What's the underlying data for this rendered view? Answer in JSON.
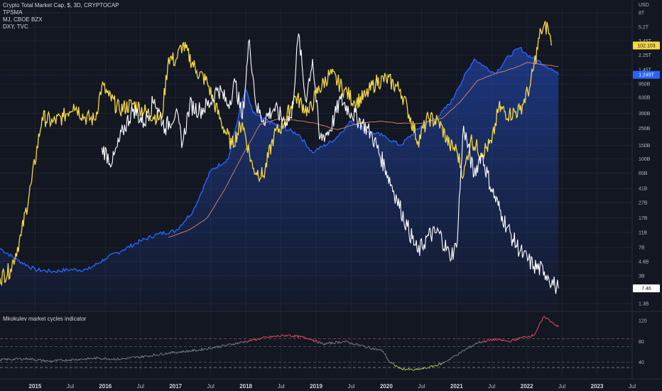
{
  "legend": {
    "main_series": "Crypto Total Market Cap, $, 3D, CRYPTOCAP",
    "indicator_1": "TPSMA",
    "indicator_2": "MJ, CBOE BZX",
    "indicator_3": "DXY, TVC"
  },
  "oscillator_title": "Mkokulev market cycles indicator",
  "colors": {
    "background": "#131722",
    "total_mcap": "#2962ff",
    "tpsma": "#e0826a",
    "mj": "#f5d742",
    "dxy": "#ffffff",
    "osc_grey": "#7a7e89",
    "osc_red": "#e0525c",
    "osc_green": "#9bbf5a"
  },
  "chart_data": [
    {
      "type": "line",
      "panel": "main",
      "scale": "log",
      "y_axis_ticks": [
        "8T",
        "5.2T",
        "3.45T",
        "2.25T",
        "1.45T",
        "950B",
        "630B",
        "390B",
        "250B",
        "150B",
        "100B",
        "65B",
        "41B",
        "27B",
        "17B",
        "11B",
        "7B",
        "4.6B",
        "3B",
        "2B",
        "1.3B"
      ],
      "y_axis_unit": "USD",
      "x_axis_ticks": [
        "2015",
        "Jul",
        "2016",
        "Jul",
        "2017",
        "Jul",
        "2018",
        "Jul",
        "2019",
        "Jul",
        "2020",
        "Jul",
        "2021",
        "Jul",
        "2022",
        "Jul",
        "2023",
        "Jul"
      ],
      "price_labels": [
        {
          "series": "MJ, CBOE BZX",
          "value": "102.103"
        },
        {
          "series": "Crypto Total Market Cap",
          "value": "1.245T"
        },
        {
          "series": "DXY, TVC",
          "value": "7.46"
        }
      ],
      "series": [
        {
          "name": "Crypto Total Market Cap",
          "points": [
            [
              2014.5,
              6.8
            ],
            [
              2014.75,
              4.8
            ],
            [
              2015.0,
              3.6
            ],
            [
              2015.25,
              3.4
            ],
            [
              2015.5,
              3.6
            ],
            [
              2015.75,
              3.6
            ],
            [
              2016.0,
              5.0
            ],
            [
              2016.25,
              6.5
            ],
            [
              2016.5,
              8.5
            ],
            [
              2016.75,
              10.5
            ],
            [
              2017.0,
              11.5
            ],
            [
              2017.25,
              21
            ],
            [
              2017.5,
              70
            ],
            [
              2017.75,
              100
            ],
            [
              2017.95,
              580
            ],
            [
              2018.0,
              800
            ],
            [
              2018.1,
              400
            ],
            [
              2018.25,
              330
            ],
            [
              2018.5,
              260
            ],
            [
              2018.75,
              210
            ],
            [
              2018.95,
              120
            ],
            [
              2019.0,
              130
            ],
            [
              2019.25,
              175
            ],
            [
              2019.5,
              310
            ],
            [
              2019.75,
              225
            ],
            [
              2019.95,
              200
            ],
            [
              2020.0,
              190
            ],
            [
              2020.2,
              150
            ],
            [
              2020.5,
              270
            ],
            [
              2020.75,
              360
            ],
            [
              2020.95,
              600
            ],
            [
              2021.0,
              780
            ],
            [
              2021.25,
              2000
            ],
            [
              2021.4,
              1600
            ],
            [
              2021.55,
              1300
            ],
            [
              2021.75,
              2200
            ],
            [
              2021.9,
              2800
            ],
            [
              2022.0,
              2300
            ],
            [
              2022.2,
              1800
            ],
            [
              2022.35,
              1500
            ],
            [
              2022.45,
              1245
            ]
          ]
        },
        {
          "name": "TPSMA",
          "points": [
            [
              2016.9,
              9.5
            ],
            [
              2017.2,
              12
            ],
            [
              2017.45,
              17
            ],
            [
              2017.7,
              40
            ],
            [
              2017.95,
              110
            ],
            [
              2018.2,
              280
            ],
            [
              2018.45,
              330
            ],
            [
              2018.7,
              320
            ],
            [
              2019.0,
              290
            ],
            [
              2019.3,
              240
            ],
            [
              2019.6,
              290
            ],
            [
              2019.9,
              310
            ],
            [
              2020.2,
              290
            ],
            [
              2020.5,
              290
            ],
            [
              2020.8,
              340
            ],
            [
              2021.05,
              550
            ],
            [
              2021.3,
              1050
            ],
            [
              2021.55,
              1300
            ],
            [
              2021.8,
              1500
            ],
            [
              2022.0,
              1800
            ],
            [
              2022.2,
              1700
            ],
            [
              2022.45,
              1600
            ]
          ]
        },
        {
          "name": "MJ, CBOE BZX",
          "points": [
            [
              2014.5,
              2.8
            ],
            [
              2014.65,
              3.6
            ],
            [
              2014.8,
              10
            ],
            [
              2014.95,
              50
            ],
            [
              2015.1,
              350
            ],
            [
              2015.25,
              300
            ],
            [
              2015.4,
              350
            ],
            [
              2015.55,
              520
            ],
            [
              2015.7,
              350
            ],
            [
              2015.85,
              320
            ],
            [
              2015.95,
              900
            ],
            [
              2016.05,
              650
            ],
            [
              2016.2,
              440
            ],
            [
              2016.4,
              520
            ],
            [
              2016.6,
              400
            ],
            [
              2016.8,
              330
            ],
            [
              2016.9,
              2100
            ],
            [
              2017.0,
              1900
            ],
            [
              2017.1,
              3100
            ],
            [
              2017.3,
              1400
            ],
            [
              2017.45,
              1000
            ],
            [
              2017.55,
              530
            ],
            [
              2017.65,
              300
            ],
            [
              2017.8,
              150
            ],
            [
              2017.95,
              300
            ],
            [
              2018.1,
              75
            ],
            [
              2018.25,
              60
            ],
            [
              2018.4,
              200
            ],
            [
              2018.55,
              300
            ],
            [
              2018.7,
              650
            ],
            [
              2018.9,
              400
            ],
            [
              2019.0,
              700
            ],
            [
              2019.2,
              1300
            ],
            [
              2019.4,
              800
            ],
            [
              2019.55,
              550
            ],
            [
              2019.7,
              650
            ],
            [
              2019.85,
              1000
            ],
            [
              2020.0,
              1100
            ],
            [
              2020.2,
              800
            ],
            [
              2020.3,
              450
            ],
            [
              2020.45,
              170
            ],
            [
              2020.6,
              340
            ],
            [
              2020.75,
              300
            ],
            [
              2020.9,
              150
            ],
            [
              2021.0,
              130
            ],
            [
              2021.1,
              60
            ],
            [
              2021.2,
              180
            ],
            [
              2021.35,
              120
            ],
            [
              2021.5,
              160
            ],
            [
              2021.6,
              460
            ],
            [
              2021.75,
              380
            ],
            [
              2021.9,
              430
            ],
            [
              2022.05,
              900
            ],
            [
              2022.2,
              4700
            ],
            [
              2022.3,
              5300
            ],
            [
              2022.35,
              3000
            ]
          ]
        },
        {
          "name": "DXY, TVC",
          "points": [
            [
              2015.95,
              140
            ],
            [
              2016.1,
              90
            ],
            [
              2016.25,
              230
            ],
            [
              2016.4,
              450
            ],
            [
              2016.55,
              290
            ],
            [
              2016.7,
              600
            ],
            [
              2016.85,
              250
            ],
            [
              2017.0,
              400
            ],
            [
              2017.1,
              160
            ],
            [
              2017.2,
              500
            ],
            [
              2017.35,
              430
            ],
            [
              2017.5,
              540
            ],
            [
              2017.6,
              850
            ],
            [
              2017.75,
              510
            ],
            [
              2017.85,
              1000
            ],
            [
              2017.95,
              330
            ],
            [
              2018.05,
              3600
            ],
            [
              2018.15,
              470
            ],
            [
              2018.25,
              320
            ],
            [
              2018.4,
              450
            ],
            [
              2018.55,
              320
            ],
            [
              2018.65,
              340
            ],
            [
              2018.75,
              4300
            ],
            [
              2018.85,
              580
            ],
            [
              2018.95,
              2000
            ],
            [
              2019.05,
              180
            ],
            [
              2019.2,
              240
            ],
            [
              2019.35,
              600
            ],
            [
              2019.5,
              400
            ],
            [
              2019.65,
              300
            ],
            [
              2019.8,
              200
            ],
            [
              2020.0,
              70
            ],
            [
              2020.15,
              30
            ],
            [
              2020.3,
              13
            ],
            [
              2020.45,
              6
            ],
            [
              2020.6,
              10
            ],
            [
              2020.75,
              11
            ],
            [
              2020.9,
              5.5
            ],
            [
              2021.0,
              7
            ],
            [
              2021.1,
              270
            ],
            [
              2021.25,
              60
            ],
            [
              2021.35,
              120
            ],
            [
              2021.5,
              40
            ],
            [
              2021.65,
              18
            ],
            [
              2021.8,
              9
            ],
            [
              2021.95,
              5.5
            ],
            [
              2022.1,
              4.0
            ],
            [
              2022.25,
              3.4
            ],
            [
              2022.3,
              3.0
            ],
            [
              2022.4,
              2.2
            ],
            [
              2022.45,
              2.05
            ]
          ]
        }
      ]
    },
    {
      "type": "line",
      "panel": "oscillator",
      "y_axis_ticks": [
        120,
        80,
        40
      ],
      "ylim": [
        15,
        135
      ],
      "levels": [
        85,
        70,
        40,
        30
      ],
      "series": [
        {
          "name": "Mkokulev market cycles indicator",
          "points": [
            [
              2014.5,
              45
            ],
            [
              2014.9,
              47
            ],
            [
              2015.2,
              42
            ],
            [
              2015.5,
              45
            ],
            [
              2015.9,
              48
            ],
            [
              2016.2,
              46
            ],
            [
              2016.6,
              52
            ],
            [
              2016.9,
              58
            ],
            [
              2017.3,
              63
            ],
            [
              2017.7,
              72
            ],
            [
              2018.0,
              80
            ],
            [
              2018.3,
              88
            ],
            [
              2018.6,
              92
            ],
            [
              2018.9,
              86
            ],
            [
              2019.1,
              75
            ],
            [
              2019.4,
              80
            ],
            [
              2019.7,
              70
            ],
            [
              2019.95,
              62
            ],
            [
              2020.05,
              40
            ],
            [
              2020.2,
              28
            ],
            [
              2020.4,
              25
            ],
            [
              2020.6,
              30
            ],
            [
              2020.8,
              38
            ],
            [
              2021.05,
              58
            ],
            [
              2021.3,
              78
            ],
            [
              2021.55,
              84
            ],
            [
              2021.75,
              80
            ],
            [
              2021.95,
              88
            ],
            [
              2022.1,
              92
            ],
            [
              2022.25,
              128
            ],
            [
              2022.35,
              118
            ],
            [
              2022.45,
              108
            ]
          ]
        }
      ]
    }
  ]
}
